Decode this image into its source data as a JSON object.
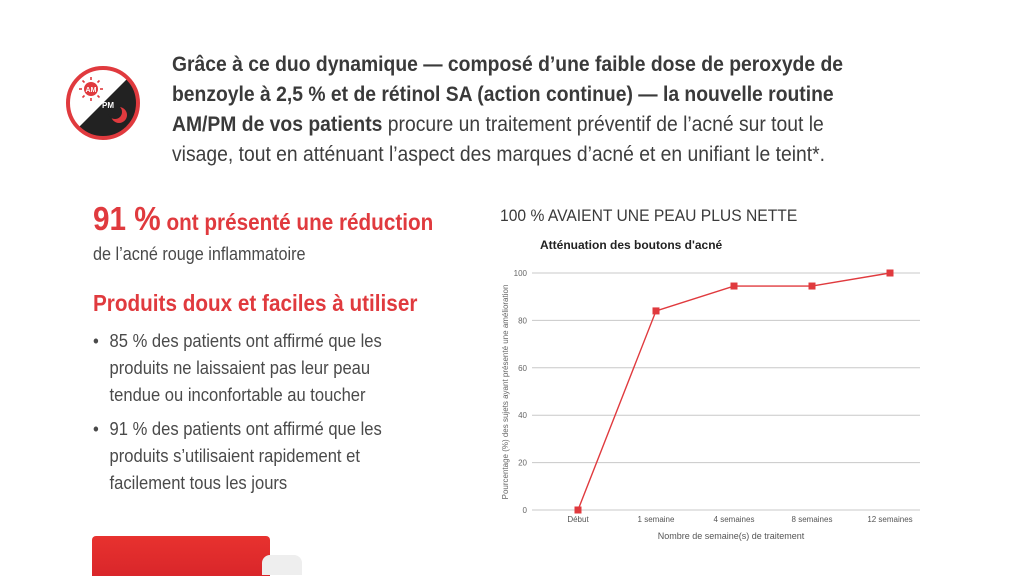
{
  "logo": {
    "am_label": "AM",
    "pm_label": "PM",
    "icon": "am-pm-sun-moon-icon",
    "accent": "#e03a3e"
  },
  "intro": {
    "bold_text": "Grâce à ce duo dynamique — composé d’une faible dose de peroxyde de benzoyle à 2,5 % et de rétinol SA (action continue) — la nouvelle routine AM/PM de vos patients",
    "regular_text": " procure un traitement préventif de l’acné sur tout le visage, tout en atténuant l’aspect des marques d’acné et en unifiant le teint*."
  },
  "stat": {
    "number": "91 %",
    "text": " ont présenté une réduction",
    "subtitle": "de l’acné rouge inflammatoire"
  },
  "products": {
    "title": "Produits doux et faciles à utiliser",
    "bullets": [
      "85 % des patients ont affirmé que les produits ne laissaient pas leur peau tendue ou inconfortable au toucher",
      "91 % des patients ont affirmé que les produits s’utilisaient rapidement et facilement tous les jours"
    ],
    "bullet_glyph": "•"
  },
  "chart_heading": "100 % AVAIENT UNE PEAU PLUS NETTE",
  "chart_data": {
    "type": "line",
    "title": "Atténuation des boutons d'acné",
    "xlabel": "Nombre de semaine(s) de traitement",
    "ylabel": "Pourcentage (%) des sujets ayant présenté une amélioration",
    "categories": [
      "Début",
      "1 semaine",
      "4 semaines",
      "8 semaines",
      "12 semaines"
    ],
    "series": [
      {
        "values": [
          0,
          84,
          94.5,
          94.5,
          100
        ],
        "color": "#e03a3e"
      }
    ],
    "ylim": [
      0,
      100
    ],
    "yticks": [
      0,
      20,
      40,
      60,
      80,
      100
    ],
    "grid": true
  },
  "colors": {
    "accent": "#e03a3e",
    "text": "#3a3a3a",
    "grid": "#c8c8c8"
  }
}
